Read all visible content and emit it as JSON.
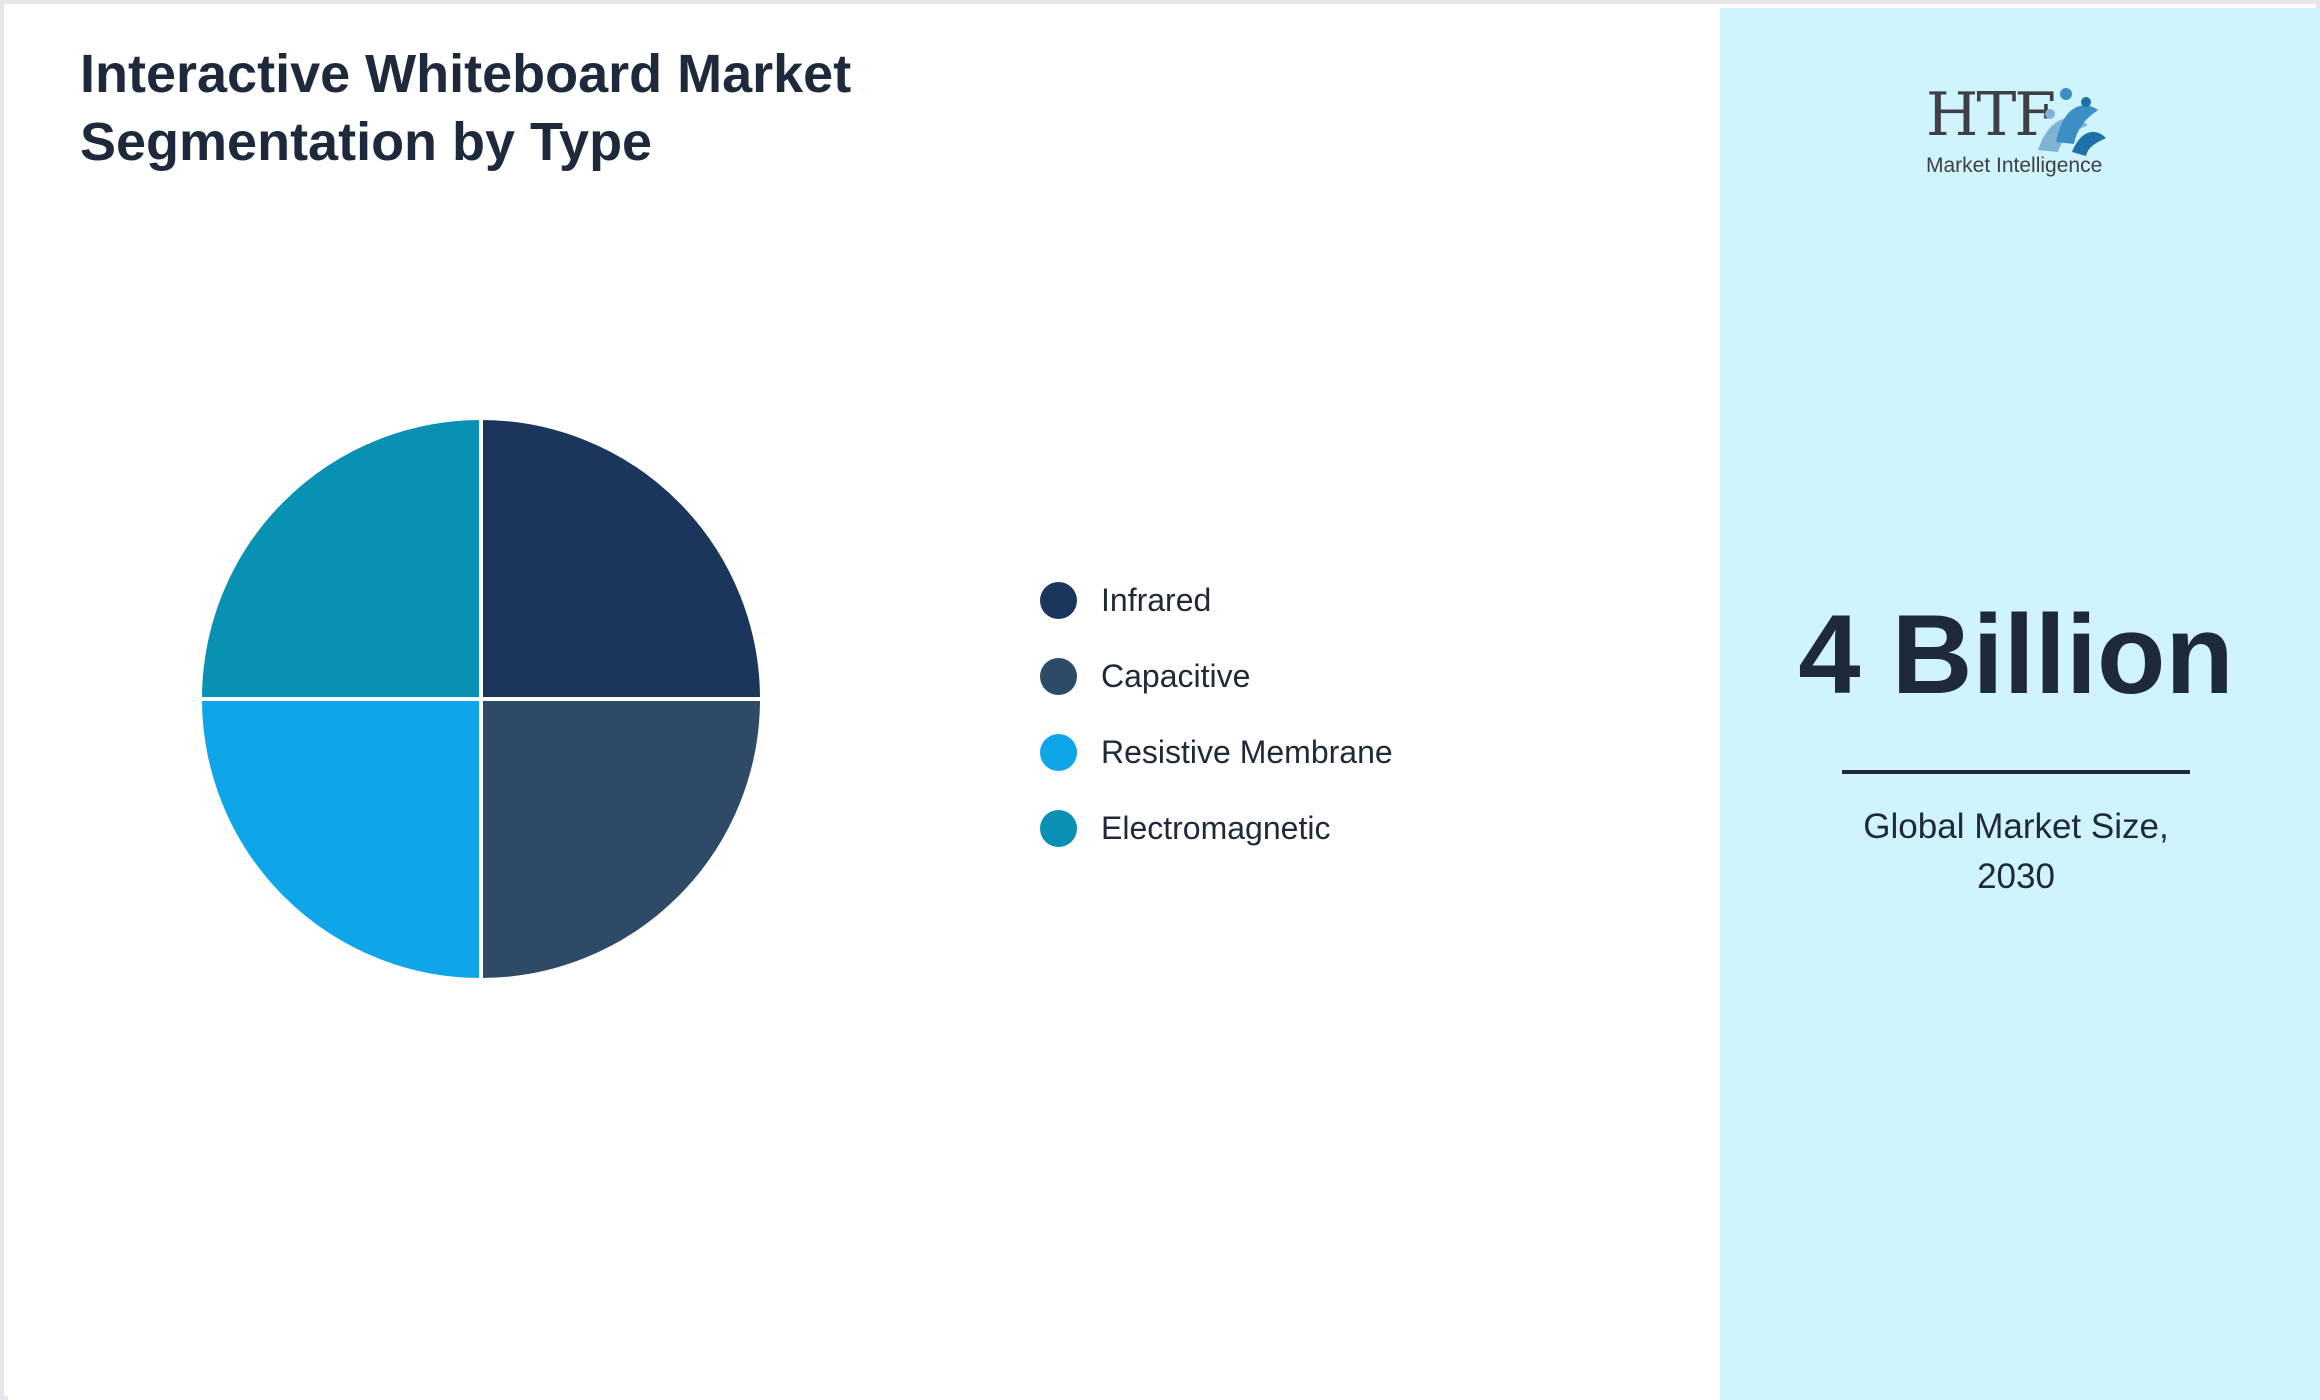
{
  "chart_data": {
    "type": "pie",
    "title": "Interactive Whiteboard Market Segmentation by Type",
    "categories": [
      "Infrared",
      "Capacitive",
      "Resistive Membrane",
      "Electromagnetic"
    ],
    "values": [
      25,
      25,
      25,
      25
    ],
    "colors": [
      "#1b365d",
      "#2d4b66",
      "#0ea5e9",
      "#0891b2"
    ],
    "legend_placement": "right"
  },
  "header": {
    "title_line1": "Interactive Whiteboard Market",
    "title_line2": "Segmentation by Type"
  },
  "logo": {
    "brand": "HTF",
    "tagline": "Market Intelligence",
    "icon": "htf-logo-icon"
  },
  "metric": {
    "value": "4 Billion",
    "caption_line1": "Global Market Size,",
    "caption_line2": "2030"
  },
  "colors": {
    "side_panel_background": "#cff4fc",
    "text_dark": "#1e293b"
  }
}
